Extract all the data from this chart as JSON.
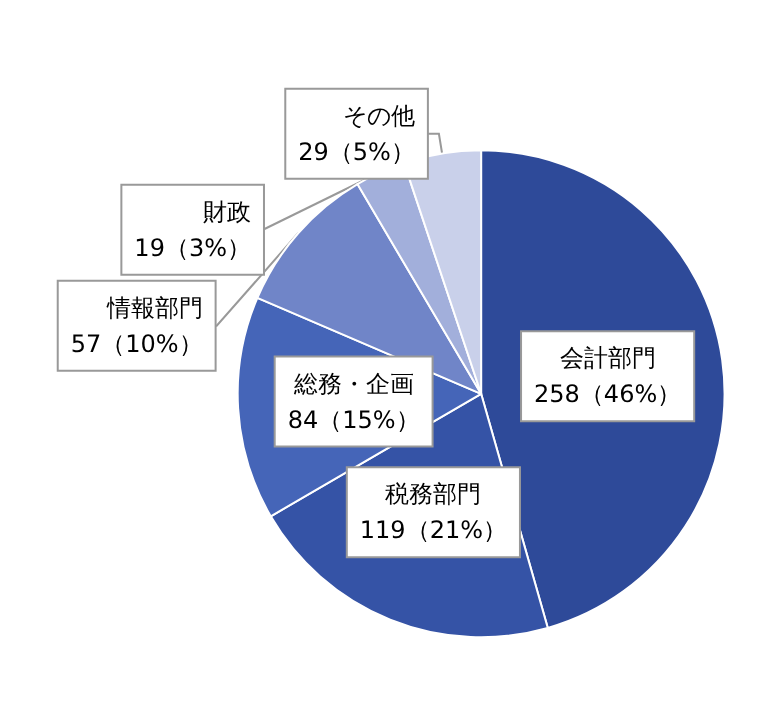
{
  "chart_data": {
    "type": "pie",
    "categories": [
      "会計部門",
      "税務部門",
      "総務・企画",
      "情報部門",
      "財政",
      "その他"
    ],
    "values": [
      258,
      119,
      84,
      57,
      19,
      29
    ],
    "value_labels": [
      "258（46%）",
      "119（21%）",
      "84（15%）",
      "57（10%）",
      "19（3%）",
      "29（5%）"
    ],
    "colors": [
      "#2e4a99",
      "#3553a6",
      "#4565b8",
      "#7085c8",
      "#a2afdb",
      "#c9d0ea"
    ],
    "legend": false
  }
}
